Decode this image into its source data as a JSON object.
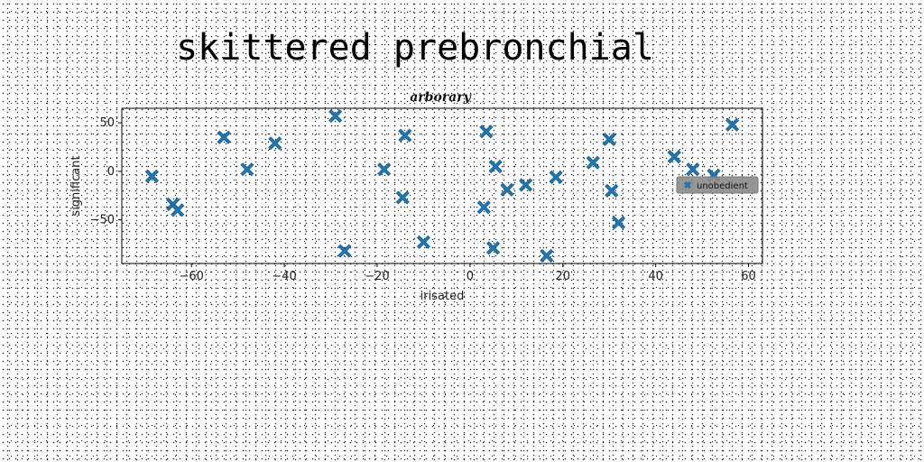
{
  "page": {
    "title": "skittered prebronchial"
  },
  "chart_data": {
    "type": "scatter",
    "title": "arborary",
    "xlabel": "irisated",
    "ylabel": "significant",
    "xlim": [
      -75,
      63
    ],
    "ylim": [
      -95,
      65
    ],
    "xticks": [
      -60,
      -40,
      -20,
      0,
      20,
      40,
      60
    ],
    "yticks": [
      -50,
      0,
      50
    ],
    "xtick_labels": [
      "−60",
      "−40",
      "−20",
      "0",
      "20",
      "40",
      "60"
    ],
    "ytick_labels": [
      "−50",
      "0",
      "50"
    ],
    "grid": false,
    "legend_position": "center-right",
    "marker": "x-filled",
    "series": [
      {
        "name": "unobedient",
        "color": "#1f77b4",
        "points": [
          [
            -68.5,
            -5
          ],
          [
            -64,
            -34
          ],
          [
            -63,
            -40
          ],
          [
            -53,
            35
          ],
          [
            -48,
            2
          ],
          [
            -42,
            29
          ],
          [
            -29,
            57
          ],
          [
            -27,
            -82
          ],
          [
            -18.5,
            2
          ],
          [
            -14.5,
            -27
          ],
          [
            -14,
            37
          ],
          [
            -10,
            -73
          ],
          [
            3,
            -37
          ],
          [
            3.5,
            41
          ],
          [
            5,
            -79
          ],
          [
            5.5,
            5
          ],
          [
            8,
            -19
          ],
          [
            12,
            -14
          ],
          [
            16.5,
            -87
          ],
          [
            18.5,
            -6
          ],
          [
            26.5,
            9
          ],
          [
            30,
            33
          ],
          [
            30.5,
            -20
          ],
          [
            32,
            -53
          ],
          [
            44,
            15
          ],
          [
            48,
            2
          ],
          [
            52.5,
            -4
          ],
          [
            56.5,
            48
          ]
        ]
      }
    ]
  }
}
